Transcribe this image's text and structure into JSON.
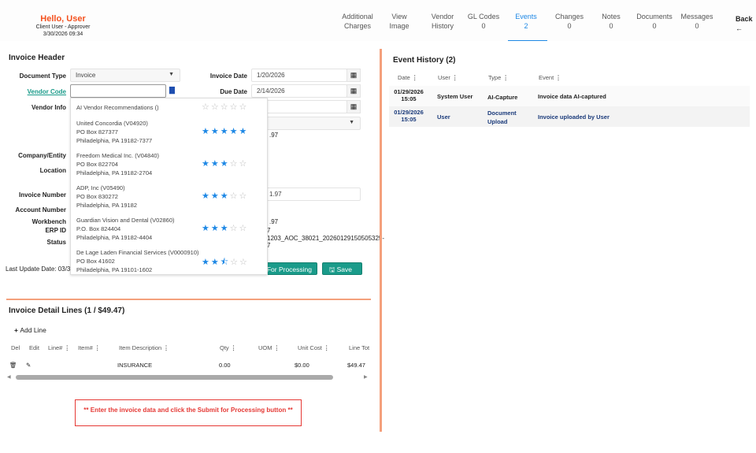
{
  "header": {
    "greeting": "Hello, User",
    "role": "Client User - Approver",
    "datetime": "3/30/2026 09:34",
    "back_label": "Back",
    "back_icon": "←"
  },
  "tabs": [
    {
      "l1": "Additional",
      "l2": "Charges"
    },
    {
      "l1": "View",
      "l2": "Image"
    },
    {
      "l1": "Vendor",
      "l2": "History"
    },
    {
      "l1": "GL Codes",
      "l2": "0"
    },
    {
      "l1": "Events",
      "l2": "2",
      "active": true
    },
    {
      "l1": "Changes",
      "l2": "0"
    },
    {
      "l1": "Notes",
      "l2": "0"
    },
    {
      "l1": "Documents",
      "l2": "0"
    },
    {
      "l1": "Messages",
      "l2": "0"
    }
  ],
  "invoice_header": {
    "title": "Invoice Header",
    "labels": {
      "document_type": "Document Type",
      "vendor_code": "Vendor Code",
      "vendor_info": "Vendor Info",
      "company": "Company/Entity",
      "location": "Location",
      "invoice_number": "Invoice Number",
      "account_number": "Account Number",
      "workbench": "Workbench",
      "erp_id": "ERP ID",
      "status": "Status",
      "invoice_date": "Invoice Date",
      "due_date": "Due Date"
    },
    "document_type": "Invoice",
    "vendor_code": "",
    "invoice_date": "1/20/2026",
    "due_date": "2/14/2026",
    "partial": {
      "a": ".97",
      "invoice_number": "1.97",
      "workbench": ".97",
      "erp_id": "7",
      "status_1": "1203_AOC_38021_20260129150505325-",
      "status_2": "7"
    },
    "last_update": "Last Update Date: 03/30",
    "submit_label": "For Processing",
    "save_label": "Save"
  },
  "vendor_popup": {
    "header": "AI Vendor Recommendations ()",
    "header_rating": 0,
    "items": [
      {
        "name": "United Concordia (V04920)",
        "addr1": "PO Box 827377",
        "addr2": "Philadelphia, PA 19182-7377",
        "rating": 5
      },
      {
        "name": "Freedom Medical Inc. (V04840)",
        "addr1": "PO Box 822704",
        "addr2": "Philadelphia, PA 19182-2704",
        "rating": 3
      },
      {
        "name": "ADP, Inc (V05490)",
        "addr1": "PO Box 830272",
        "addr2": "Philadelphia, PA 19182",
        "rating": 3
      },
      {
        "name": "Guardian Vision and Dental (V02860)",
        "addr1": "P.O. Box 824404",
        "addr2": "Philadelphia, PA 19182-4404",
        "rating": 3
      },
      {
        "name": "De Lage Laden Financial Services (V0000910)",
        "addr1": "PO Box 41602",
        "addr2": "Philadelphia, PA 19101-1602",
        "rating": 2.5
      }
    ]
  },
  "detail_lines": {
    "title": "Invoice Detail Lines (1 / $49.47)",
    "add_label": "Add Line",
    "columns": [
      "Del",
      "Edit",
      "Line#",
      "Item#",
      "Item Description",
      "Qty",
      "UOM",
      "Unit Cost",
      "Line Tot"
    ],
    "rows": [
      {
        "description": "INSURANCE",
        "qty": "0.00",
        "unit_cost": "$0.00",
        "line_total": "$49.47"
      }
    ]
  },
  "message": "** Enter the invoice data and click the Submit for Processing button **",
  "event_history": {
    "title": "Event History (2)",
    "columns": [
      "Date",
      "User",
      "Type",
      "Event"
    ],
    "rows": [
      {
        "date": "01/29/2026",
        "time": "15:05",
        "user": "System User",
        "type": "AI-Capture",
        "event": "Invoice data AI-captured"
      },
      {
        "date": "01/29/2026",
        "time": "15:05",
        "user": "User",
        "type": "Document Upload",
        "event": "Invoice uploaded by User"
      }
    ]
  },
  "colors": {
    "accent": "#f4511e",
    "active_tab": "#1e88e5",
    "button": "#1a9b8a",
    "divider": "#f4a07c",
    "error": "#e53935"
  }
}
